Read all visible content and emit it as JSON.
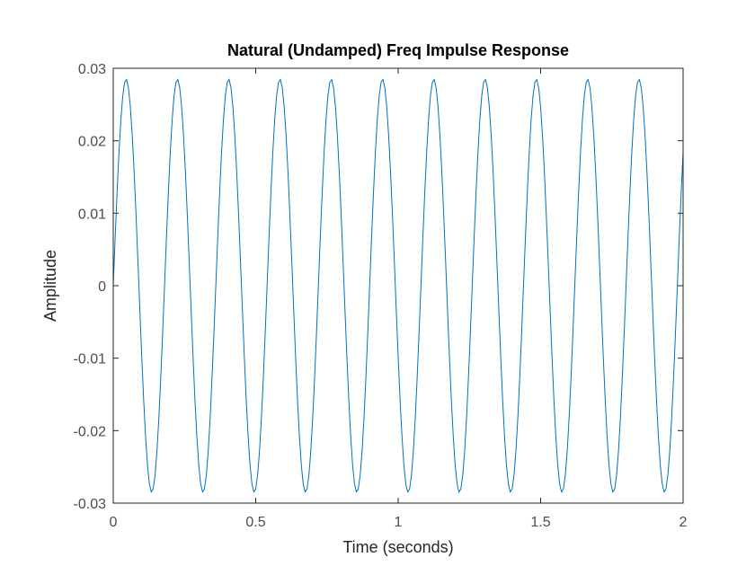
{
  "chart_data": {
    "type": "line",
    "title": "Natural (Undamped) Freq Impulse Response",
    "xlabel": "Time (seconds)",
    "ylabel": "Amplitude",
    "xlim": [
      0,
      2
    ],
    "ylim": [
      -0.03,
      0.03
    ],
    "xticks": [
      0,
      0.5,
      1,
      1.5,
      2
    ],
    "xtick_labels": [
      "0",
      "0.5",
      "1",
      "1.5",
      "2"
    ],
    "yticks": [
      -0.03,
      -0.02,
      -0.01,
      0,
      0.01,
      0.02,
      0.03
    ],
    "ytick_labels": [
      "-0.03",
      "-0.02",
      "-0.01",
      "0",
      "0.01",
      "0.02",
      "0.03"
    ],
    "grid": false,
    "line_color": "#0072BD",
    "series": [
      {
        "x": [
          0,
          0.045,
          0.135,
          0.225,
          0.315,
          0.405,
          0.495,
          0.585,
          0.675,
          0.765,
          0.855,
          0.945,
          1.035,
          1.125,
          1.215,
          1.305,
          1.395,
          1.485,
          1.575,
          1.665,
          1.755,
          1.845,
          1.935,
          2.0
        ],
        "y": [
          0,
          0.0285,
          -0.0285,
          0.0285,
          -0.0285,
          0.0285,
          -0.0285,
          0.0285,
          -0.0285,
          0.0285,
          -0.0285,
          0.0285,
          -0.0285,
          0.0285,
          -0.0285,
          0.0285,
          -0.0285,
          0.0285,
          -0.0285,
          0.0285,
          -0.0285,
          0.0285,
          -0.0285,
          0.022
        ],
        "waveform": "sinusoid",
        "amplitude": 0.0285,
        "frequency_hz": 5.556,
        "sampled_points": 300
      }
    ]
  }
}
